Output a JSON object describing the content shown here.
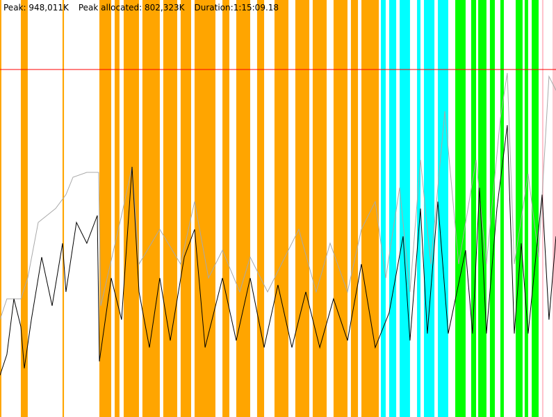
{
  "header": {
    "peak": "Peak: 948,011K",
    "peak_allocated": "Peak allocated: 802,323K",
    "duration": "Duration:1:15:09.18"
  },
  "colors": {
    "orange": "#ffa500",
    "cyan": "#00ffff",
    "green": "#00ff00",
    "pink": "#ffc0cb",
    "peak_line": "#ff0000",
    "total_series": "#a9a9a9",
    "allocated_series": "#000000"
  },
  "chart_data": {
    "type": "line",
    "x_unit": "seconds",
    "y_unit": "K",
    "xlim": [
      0,
      4509
    ],
    "ylim": [
      0,
      1137600
    ],
    "peak_line": 948011,
    "bands": [
      {
        "color": "orange",
        "ranges": [
          [
            0,
            11
          ],
          [
            169,
            225
          ],
          [
            507,
            519
          ],
          [
            806,
            902
          ],
          [
            930,
            969
          ],
          [
            1003,
            1127
          ],
          [
            1155,
            1296
          ],
          [
            1324,
            1437
          ],
          [
            1465,
            1550
          ],
          [
            1578,
            1747
          ],
          [
            1804,
            1860
          ],
          [
            1916,
            2029
          ],
          [
            2085,
            2142
          ],
          [
            2226,
            2339
          ],
          [
            2395,
            2508
          ],
          [
            2536,
            2649
          ],
          [
            2705,
            2818
          ],
          [
            2846,
            2903
          ],
          [
            2931,
            3072
          ]
        ]
      },
      {
        "color": "cyan",
        "ranges": [
          [
            3089,
            3128
          ],
          [
            3156,
            3213
          ],
          [
            3241,
            3325
          ],
          [
            3382,
            3410
          ],
          [
            3438,
            3523
          ],
          [
            3551,
            3635
          ]
        ]
      },
      {
        "color": "green",
        "ranges": [
          [
            3692,
            3776
          ],
          [
            3821,
            3861
          ],
          [
            3878,
            3945
          ],
          [
            3973,
            4013
          ],
          [
            4058,
            4086
          ],
          [
            4182,
            4238
          ],
          [
            4255,
            4283
          ],
          [
            4312,
            4368
          ]
        ]
      },
      {
        "color": "pink",
        "ranges": [
          [
            4396,
            4407
          ],
          [
            4481,
            4509
          ]
        ]
      }
    ],
    "series": [
      {
        "color": "total_series",
        "points": [
          [
            0,
            265440
          ],
          [
            56,
            322320
          ],
          [
            169,
            322320
          ],
          [
            225,
            379200
          ],
          [
            310,
            530880
          ],
          [
            451,
            568800
          ],
          [
            535,
            606720
          ],
          [
            592,
            654120
          ],
          [
            704,
            667390
          ],
          [
            800,
            667390
          ],
          [
            817,
            303360
          ],
          [
            986,
            549840
          ],
          [
            1071,
            682560
          ],
          [
            1127,
            417120
          ],
          [
            1296,
            511920
          ],
          [
            1465,
            417120
          ],
          [
            1578,
            587760
          ],
          [
            1691,
            379200
          ],
          [
            1804,
            455040
          ],
          [
            1944,
            341280
          ],
          [
            2029,
            436080
          ],
          [
            2170,
            341280
          ],
          [
            2423,
            511920
          ],
          [
            2564,
            341280
          ],
          [
            2677,
            474000
          ],
          [
            2818,
            341280
          ],
          [
            2931,
            511920
          ],
          [
            3043,
            587760
          ],
          [
            3128,
            379200
          ],
          [
            3241,
            625680
          ],
          [
            3325,
            341280
          ],
          [
            3410,
            701520
          ],
          [
            3494,
            417120
          ],
          [
            3607,
            834240
          ],
          [
            3720,
            417120
          ],
          [
            3861,
            701520
          ],
          [
            3945,
            417120
          ],
          [
            4058,
            815280
          ],
          [
            4114,
            938520
          ],
          [
            4171,
            417120
          ],
          [
            4283,
            663600
          ],
          [
            4368,
            436080
          ],
          [
            4452,
            929040
          ],
          [
            4509,
            891120
          ]
        ]
      },
      {
        "color": "allocated_series",
        "points": [
          [
            0,
            113760
          ],
          [
            56,
            170640
          ],
          [
            113,
            322320
          ],
          [
            169,
            246480
          ],
          [
            197,
            132720
          ],
          [
            254,
            265440
          ],
          [
            338,
            436080
          ],
          [
            423,
            303360
          ],
          [
            507,
            474000
          ],
          [
            535,
            341280
          ],
          [
            620,
            530880
          ],
          [
            704,
            474000
          ],
          [
            789,
            549840
          ],
          [
            806,
            151680
          ],
          [
            902,
            379200
          ],
          [
            986,
            265440
          ],
          [
            1071,
            682560
          ],
          [
            1127,
            341280
          ],
          [
            1212,
            189600
          ],
          [
            1296,
            379200
          ],
          [
            1381,
            208560
          ],
          [
            1494,
            436080
          ],
          [
            1578,
            511920
          ],
          [
            1663,
            189600
          ],
          [
            1804,
            379200
          ],
          [
            1916,
            208560
          ],
          [
            2029,
            379200
          ],
          [
            2142,
            189600
          ],
          [
            2254,
            360240
          ],
          [
            2367,
            189600
          ],
          [
            2480,
            341280
          ],
          [
            2593,
            189600
          ],
          [
            2705,
            322320
          ],
          [
            2818,
            208560
          ],
          [
            2931,
            417120
          ],
          [
            3043,
            189600
          ],
          [
            3156,
            284400
          ],
          [
            3269,
            493040
          ],
          [
            3325,
            208560
          ],
          [
            3410,
            568800
          ],
          [
            3466,
            227520
          ],
          [
            3551,
            587760
          ],
          [
            3635,
            227520
          ],
          [
            3776,
            455040
          ],
          [
            3832,
            227520
          ],
          [
            3889,
            625680
          ],
          [
            3945,
            227520
          ],
          [
            4030,
            568800
          ],
          [
            4114,
            796320
          ],
          [
            4171,
            227520
          ],
          [
            4227,
            474000
          ],
          [
            4283,
            227520
          ],
          [
            4396,
            606720
          ],
          [
            4452,
            265440
          ],
          [
            4509,
            493040
          ]
        ]
      }
    ]
  }
}
